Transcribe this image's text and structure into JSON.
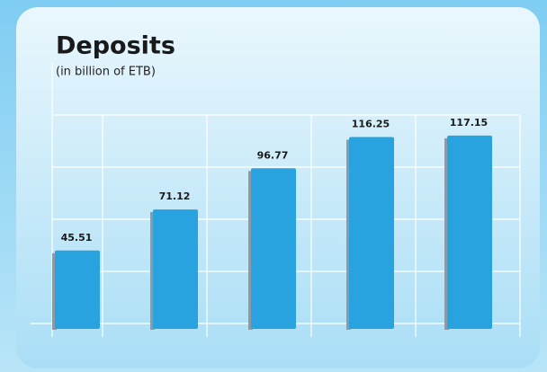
{
  "chart_data": {
    "type": "bar",
    "title": "Deposits",
    "subtitle": "(in billion of ETB)",
    "categories": [
      null,
      null,
      null,
      null,
      null
    ],
    "values": [
      45.51,
      71.12,
      96.77,
      116.25,
      117.15
    ],
    "color": "#29a3df",
    "ylim": [
      0,
      130
    ]
  }
}
